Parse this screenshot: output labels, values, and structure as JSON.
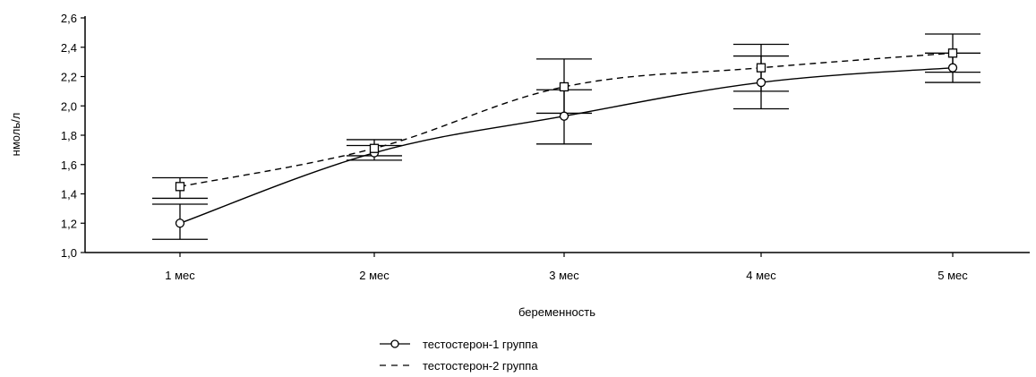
{
  "chart_data": {
    "type": "line",
    "categories": [
      "1 мес",
      "2 мес",
      "3 мес",
      "4 мес",
      "5 мес"
    ],
    "xlabel": "беременность",
    "ylabel": "нмоль/л",
    "ylim": [
      1.0,
      2.6
    ],
    "yticks": [
      "1,0",
      "1,2",
      "1,4",
      "1,6",
      "1,8",
      "2,0",
      "2,2",
      "2,4",
      "2,6"
    ],
    "grid": false,
    "legend_position": "bottom-center",
    "series": [
      {
        "name": "тестостерон-1 группа",
        "values": [
          1.2,
          1.68,
          1.93,
          2.16,
          2.26
        ],
        "err_low": [
          1.09,
          1.63,
          1.74,
          1.98,
          2.16
        ],
        "err_high": [
          1.33,
          1.73,
          2.11,
          2.34,
          2.36
        ],
        "line_style": "solid",
        "marker": "circle"
      },
      {
        "name": "тестостерон-2 группа",
        "values": [
          1.45,
          1.71,
          2.13,
          2.26,
          2.36
        ],
        "err_low": [
          1.37,
          1.66,
          1.95,
          2.1,
          2.23
        ],
        "err_high": [
          1.51,
          1.77,
          2.32,
          2.42,
          2.49
        ],
        "line_style": "dashed",
        "marker": "square"
      }
    ]
  }
}
